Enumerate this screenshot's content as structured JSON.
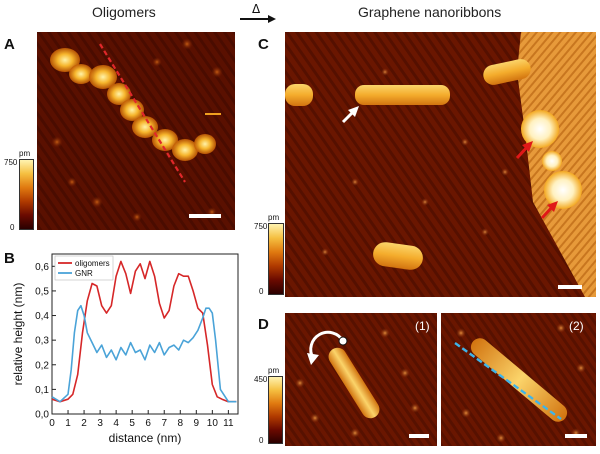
{
  "figure": {
    "left_title": "Oligomers",
    "right_title": "Graphene nanoribbons",
    "arrow_symbol": "Δ"
  },
  "panels": {
    "A": {
      "letter": "A",
      "colorbar_unit": "pm",
      "colorbar_max": "750",
      "colorbar_min": "0"
    },
    "B": {
      "letter": "B"
    },
    "C": {
      "letter": "C",
      "colorbar_unit": "pm",
      "colorbar_max": "750",
      "colorbar_min": "0"
    },
    "D": {
      "letter": "D",
      "colorbar_unit": "pm",
      "colorbar_max": "450",
      "colorbar_min": "0",
      "sub1_label": "(1)",
      "sub2_label": "(2)"
    }
  },
  "colors": {
    "oligomers_line": "#d62728",
    "gnr_line": "#4aa3d8",
    "red_arrow": "#e01818",
    "white_arrow": "#ffffff",
    "profile_line_A": "#e0282a",
    "profile_line_D": "#3fb4e8"
  },
  "chart_data": {
    "type": "line",
    "title": "",
    "xlabel": "distance (nm)",
    "ylabel": "relative height (nm)",
    "xlim": [
      0,
      11.6
    ],
    "ylim": [
      0,
      0.65
    ],
    "xticks": [
      0,
      1,
      2,
      3,
      4,
      5,
      6,
      7,
      8,
      9,
      10,
      11
    ],
    "yticks": [
      0.0,
      0.1,
      0.2,
      0.3,
      0.4,
      0.5,
      0.6
    ],
    "ytick_labels": [
      "0,0",
      "0,1",
      "0,2",
      "0,3",
      "0,4",
      "0,5",
      "0,6"
    ],
    "legend_position": "top-left",
    "series": [
      {
        "name": "oligomers",
        "color": "#d62728",
        "x": [
          0,
          0.5,
          1.0,
          1.3,
          1.6,
          1.9,
          2.2,
          2.5,
          2.8,
          3.1,
          3.4,
          3.7,
          4.0,
          4.3,
          4.6,
          4.9,
          5.2,
          5.5,
          5.8,
          6.1,
          6.4,
          6.7,
          7.0,
          7.3,
          7.6,
          7.9,
          8.2,
          8.5,
          8.8,
          9.1,
          9.4,
          9.7,
          10.0,
          10.3,
          10.6,
          11.0,
          11.5
        ],
        "y": [
          0.06,
          0.05,
          0.06,
          0.08,
          0.16,
          0.33,
          0.46,
          0.53,
          0.52,
          0.44,
          0.41,
          0.44,
          0.56,
          0.62,
          0.57,
          0.49,
          0.58,
          0.61,
          0.55,
          0.62,
          0.56,
          0.45,
          0.39,
          0.42,
          0.52,
          0.57,
          0.56,
          0.56,
          0.5,
          0.43,
          0.41,
          0.28,
          0.12,
          0.07,
          0.06,
          0.05,
          0.05
        ]
      },
      {
        "name": "GNR",
        "color": "#4aa3d8",
        "x": [
          0,
          0.5,
          1.0,
          1.2,
          1.4,
          1.6,
          1.8,
          2.0,
          2.2,
          2.5,
          2.8,
          3.1,
          3.4,
          3.7,
          4.0,
          4.3,
          4.6,
          4.9,
          5.2,
          5.5,
          5.8,
          6.1,
          6.4,
          6.7,
          7.0,
          7.3,
          7.6,
          7.9,
          8.2,
          8.5,
          8.8,
          9.1,
          9.4,
          9.6,
          9.8,
          10.0,
          10.2,
          10.5,
          11.0,
          11.5
        ],
        "y": [
          0.07,
          0.05,
          0.08,
          0.18,
          0.33,
          0.42,
          0.44,
          0.4,
          0.33,
          0.29,
          0.25,
          0.28,
          0.23,
          0.26,
          0.22,
          0.27,
          0.24,
          0.29,
          0.25,
          0.26,
          0.22,
          0.28,
          0.25,
          0.29,
          0.24,
          0.27,
          0.28,
          0.26,
          0.3,
          0.29,
          0.31,
          0.34,
          0.39,
          0.43,
          0.43,
          0.41,
          0.3,
          0.1,
          0.05,
          0.05
        ]
      }
    ]
  }
}
